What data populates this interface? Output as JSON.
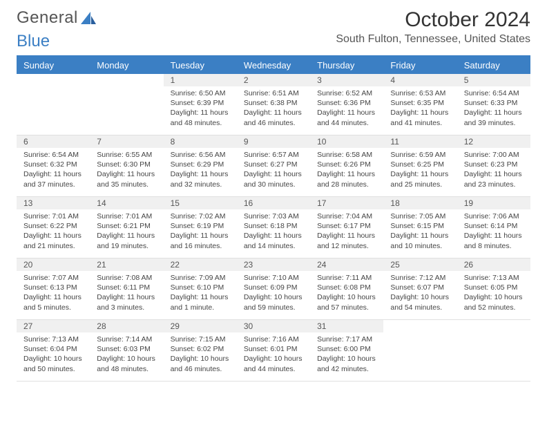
{
  "logo": {
    "text_general": "General",
    "text_blue": "Blue"
  },
  "header": {
    "title": "October 2024",
    "location": "South Fulton, Tennessee, United States"
  },
  "colors": {
    "primary": "#3b7fc4",
    "header_bg": "#3b7fc4",
    "daynum_bg": "#f0f0f0",
    "text": "#333333",
    "muted": "#555555",
    "border": "#e0e0e0"
  },
  "day_names": [
    "Sunday",
    "Monday",
    "Tuesday",
    "Wednesday",
    "Thursday",
    "Friday",
    "Saturday"
  ],
  "weeks": [
    [
      {
        "blank": true
      },
      {
        "blank": true
      },
      {
        "day": "1",
        "sunrise": "Sunrise: 6:50 AM",
        "sunset": "Sunset: 6:39 PM",
        "daylight": "Daylight: 11 hours and 48 minutes."
      },
      {
        "day": "2",
        "sunrise": "Sunrise: 6:51 AM",
        "sunset": "Sunset: 6:38 PM",
        "daylight": "Daylight: 11 hours and 46 minutes."
      },
      {
        "day": "3",
        "sunrise": "Sunrise: 6:52 AM",
        "sunset": "Sunset: 6:36 PM",
        "daylight": "Daylight: 11 hours and 44 minutes."
      },
      {
        "day": "4",
        "sunrise": "Sunrise: 6:53 AM",
        "sunset": "Sunset: 6:35 PM",
        "daylight": "Daylight: 11 hours and 41 minutes."
      },
      {
        "day": "5",
        "sunrise": "Sunrise: 6:54 AM",
        "sunset": "Sunset: 6:33 PM",
        "daylight": "Daylight: 11 hours and 39 minutes."
      }
    ],
    [
      {
        "day": "6",
        "sunrise": "Sunrise: 6:54 AM",
        "sunset": "Sunset: 6:32 PM",
        "daylight": "Daylight: 11 hours and 37 minutes."
      },
      {
        "day": "7",
        "sunrise": "Sunrise: 6:55 AM",
        "sunset": "Sunset: 6:30 PM",
        "daylight": "Daylight: 11 hours and 35 minutes."
      },
      {
        "day": "8",
        "sunrise": "Sunrise: 6:56 AM",
        "sunset": "Sunset: 6:29 PM",
        "daylight": "Daylight: 11 hours and 32 minutes."
      },
      {
        "day": "9",
        "sunrise": "Sunrise: 6:57 AM",
        "sunset": "Sunset: 6:27 PM",
        "daylight": "Daylight: 11 hours and 30 minutes."
      },
      {
        "day": "10",
        "sunrise": "Sunrise: 6:58 AM",
        "sunset": "Sunset: 6:26 PM",
        "daylight": "Daylight: 11 hours and 28 minutes."
      },
      {
        "day": "11",
        "sunrise": "Sunrise: 6:59 AM",
        "sunset": "Sunset: 6:25 PM",
        "daylight": "Daylight: 11 hours and 25 minutes."
      },
      {
        "day": "12",
        "sunrise": "Sunrise: 7:00 AM",
        "sunset": "Sunset: 6:23 PM",
        "daylight": "Daylight: 11 hours and 23 minutes."
      }
    ],
    [
      {
        "day": "13",
        "sunrise": "Sunrise: 7:01 AM",
        "sunset": "Sunset: 6:22 PM",
        "daylight": "Daylight: 11 hours and 21 minutes."
      },
      {
        "day": "14",
        "sunrise": "Sunrise: 7:01 AM",
        "sunset": "Sunset: 6:21 PM",
        "daylight": "Daylight: 11 hours and 19 minutes."
      },
      {
        "day": "15",
        "sunrise": "Sunrise: 7:02 AM",
        "sunset": "Sunset: 6:19 PM",
        "daylight": "Daylight: 11 hours and 16 minutes."
      },
      {
        "day": "16",
        "sunrise": "Sunrise: 7:03 AM",
        "sunset": "Sunset: 6:18 PM",
        "daylight": "Daylight: 11 hours and 14 minutes."
      },
      {
        "day": "17",
        "sunrise": "Sunrise: 7:04 AM",
        "sunset": "Sunset: 6:17 PM",
        "daylight": "Daylight: 11 hours and 12 minutes."
      },
      {
        "day": "18",
        "sunrise": "Sunrise: 7:05 AM",
        "sunset": "Sunset: 6:15 PM",
        "daylight": "Daylight: 11 hours and 10 minutes."
      },
      {
        "day": "19",
        "sunrise": "Sunrise: 7:06 AM",
        "sunset": "Sunset: 6:14 PM",
        "daylight": "Daylight: 11 hours and 8 minutes."
      }
    ],
    [
      {
        "day": "20",
        "sunrise": "Sunrise: 7:07 AM",
        "sunset": "Sunset: 6:13 PM",
        "daylight": "Daylight: 11 hours and 5 minutes."
      },
      {
        "day": "21",
        "sunrise": "Sunrise: 7:08 AM",
        "sunset": "Sunset: 6:11 PM",
        "daylight": "Daylight: 11 hours and 3 minutes."
      },
      {
        "day": "22",
        "sunrise": "Sunrise: 7:09 AM",
        "sunset": "Sunset: 6:10 PM",
        "daylight": "Daylight: 11 hours and 1 minute."
      },
      {
        "day": "23",
        "sunrise": "Sunrise: 7:10 AM",
        "sunset": "Sunset: 6:09 PM",
        "daylight": "Daylight: 10 hours and 59 minutes."
      },
      {
        "day": "24",
        "sunrise": "Sunrise: 7:11 AM",
        "sunset": "Sunset: 6:08 PM",
        "daylight": "Daylight: 10 hours and 57 minutes."
      },
      {
        "day": "25",
        "sunrise": "Sunrise: 7:12 AM",
        "sunset": "Sunset: 6:07 PM",
        "daylight": "Daylight: 10 hours and 54 minutes."
      },
      {
        "day": "26",
        "sunrise": "Sunrise: 7:13 AM",
        "sunset": "Sunset: 6:05 PM",
        "daylight": "Daylight: 10 hours and 52 minutes."
      }
    ],
    [
      {
        "day": "27",
        "sunrise": "Sunrise: 7:13 AM",
        "sunset": "Sunset: 6:04 PM",
        "daylight": "Daylight: 10 hours and 50 minutes."
      },
      {
        "day": "28",
        "sunrise": "Sunrise: 7:14 AM",
        "sunset": "Sunset: 6:03 PM",
        "daylight": "Daylight: 10 hours and 48 minutes."
      },
      {
        "day": "29",
        "sunrise": "Sunrise: 7:15 AM",
        "sunset": "Sunset: 6:02 PM",
        "daylight": "Daylight: 10 hours and 46 minutes."
      },
      {
        "day": "30",
        "sunrise": "Sunrise: 7:16 AM",
        "sunset": "Sunset: 6:01 PM",
        "daylight": "Daylight: 10 hours and 44 minutes."
      },
      {
        "day": "31",
        "sunrise": "Sunrise: 7:17 AM",
        "sunset": "Sunset: 6:00 PM",
        "daylight": "Daylight: 10 hours and 42 minutes."
      },
      {
        "blank": true
      },
      {
        "blank": true
      }
    ]
  ]
}
